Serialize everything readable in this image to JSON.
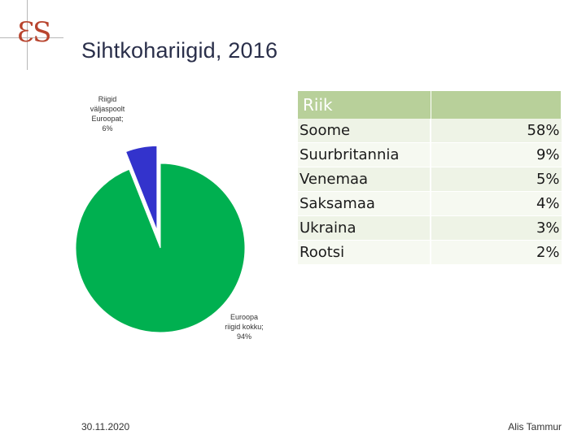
{
  "header": {
    "title": "Sihtkohariigid, 2016",
    "logo_text": "ES"
  },
  "chart_data": {
    "type": "pie",
    "slices": [
      {
        "label": "Euroopa riigid kokku; 94%",
        "label_lines": [
          "Euroopa",
          "riigid kokku;",
          "94%"
        ],
        "value": 94,
        "color": "#00b050",
        "exploded": false
      },
      {
        "label": "Riigid väljaspoolt Euroopat; 6%",
        "label_lines": [
          "Riigid",
          "väljaspoolt",
          "Euroopat;",
          "6%"
        ],
        "value": 6,
        "color": "#3333cc",
        "exploded": true
      }
    ]
  },
  "table": {
    "header": [
      "Riik",
      ""
    ],
    "rows": [
      {
        "country": "Soome",
        "share": "58%"
      },
      {
        "country": "Suurbritannia",
        "share": "9%"
      },
      {
        "country": "Venemaa",
        "share": "5%"
      },
      {
        "country": "Saksamaa",
        "share": "4%"
      },
      {
        "country": "Ukraina",
        "share": "3%"
      },
      {
        "country": "Rootsi",
        "share": "2%"
      }
    ]
  },
  "footer": {
    "date": "30.11.2020",
    "author": "Alis Tammur"
  }
}
